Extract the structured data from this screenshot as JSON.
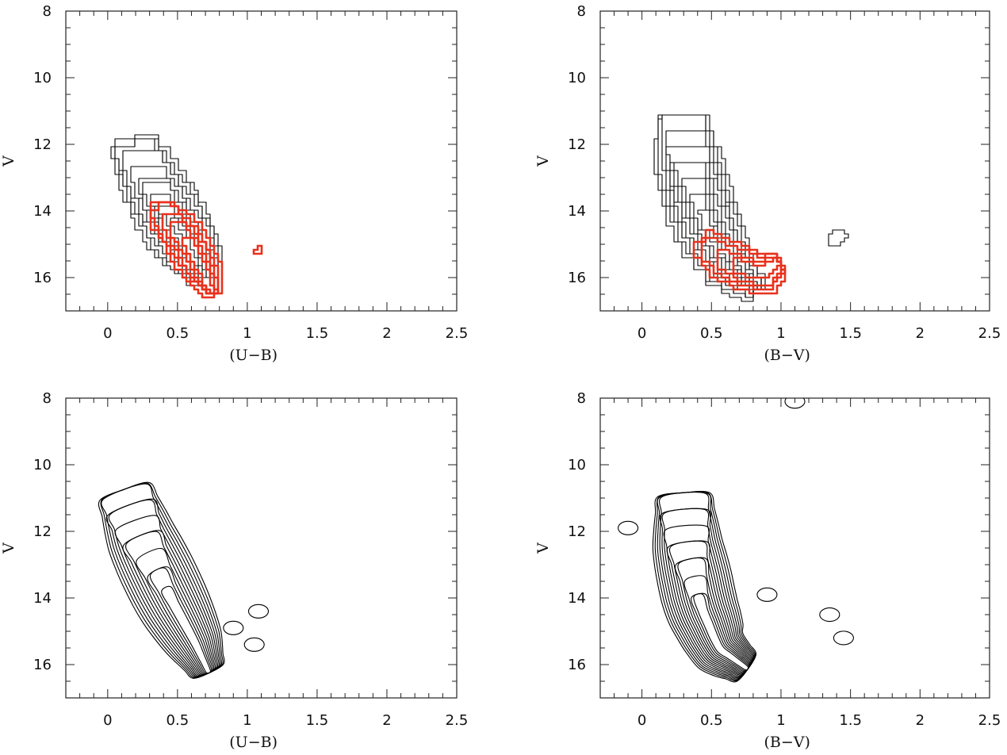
{
  "chart_data": [
    {
      "type": "contour",
      "panel": "top-left",
      "xlabel": "(U−B)",
      "ylabel": "V",
      "xlim": [
        -0.3,
        2.5
      ],
      "ylim": [
        17,
        8
      ],
      "xticks": [
        "0",
        "0.5",
        "1",
        "1.5",
        "2",
        "2.5"
      ],
      "yticks": [
        "8",
        "10",
        "12",
        "14",
        "16"
      ],
      "series": [
        {
          "color": "#000000",
          "style": "binned-contours",
          "levels": 10,
          "ridge": [
            [
              0.2,
              12.1
            ],
            [
              0.35,
              13.4
            ],
            [
              0.5,
              14.5
            ],
            [
              0.62,
              15.4
            ],
            [
              0.68,
              16.0
            ]
          ]
        },
        {
          "color": "#e8311c",
          "style": "binned-contours",
          "levels": 5,
          "ridge": [
            [
              0.38,
              14.0
            ],
            [
              0.55,
              14.8
            ],
            [
              0.68,
              15.8
            ],
            [
              0.75,
              16.4
            ]
          ],
          "islands": [
            [
              1.08,
              15.2
            ]
          ]
        }
      ]
    },
    {
      "type": "contour",
      "panel": "top-right",
      "xlabel": "(B−V)",
      "ylabel": "V",
      "xlim": [
        -0.3,
        2.5
      ],
      "ylim": [
        17,
        8
      ],
      "xticks": [
        "0",
        "0.5",
        "1",
        "1.5",
        "2",
        "2.5"
      ],
      "yticks": [
        "8",
        "10",
        "12",
        "14",
        "16"
      ],
      "series": [
        {
          "color": "#000000",
          "style": "binned-contours",
          "levels": 10,
          "ridge": [
            [
              0.3,
              11.2
            ],
            [
              0.35,
              12.8
            ],
            [
              0.45,
              14.3
            ],
            [
              0.6,
              15.6
            ],
            [
              0.8,
              16.3
            ]
          ],
          "islands": [
            [
              1.4,
              14.8
            ]
          ]
        },
        {
          "color": "#e8311c",
          "style": "binned-contours",
          "levels": 4,
          "ridge": [
            [
              0.45,
              15.0
            ],
            [
              0.65,
              15.6
            ],
            [
              0.85,
              15.9
            ],
            [
              1.0,
              15.5
            ]
          ]
        }
      ]
    },
    {
      "type": "contour",
      "panel": "bottom-left",
      "xlabel": "(U−B)",
      "ylabel": "V",
      "xlim": [
        -0.3,
        2.5
      ],
      "ylim": [
        17,
        8
      ],
      "xticks": [
        "0",
        "0.5",
        "1",
        "1.5",
        "2",
        "2.5"
      ],
      "yticks": [
        "8",
        "10",
        "12",
        "14",
        "16"
      ],
      "series": [
        {
          "color": "#000000",
          "style": "smooth-contours",
          "levels": 12,
          "ridge": [
            [
              0.12,
              10.8
            ],
            [
              0.25,
              12.3
            ],
            [
              0.45,
              14.0
            ],
            [
              0.62,
              15.3
            ],
            [
              0.72,
              16.2
            ]
          ],
          "islands": [
            [
              0.9,
              14.9
            ],
            [
              1.05,
              15.4
            ],
            [
              1.08,
              14.4
            ]
          ]
        }
      ]
    },
    {
      "type": "contour",
      "panel": "bottom-right",
      "xlabel": "(B−V)",
      "ylabel": "V",
      "xlim": [
        -0.3,
        2.5
      ],
      "ylim": [
        17,
        8
      ],
      "xticks": [
        "0",
        "0.5",
        "1",
        "1.5",
        "2",
        "2.5"
      ],
      "yticks": [
        "8",
        "10",
        "12",
        "14",
        "16"
      ],
      "series": [
        {
          "color": "#000000",
          "style": "smooth-contours",
          "levels": 14,
          "ridge": [
            [
              0.3,
              10.9
            ],
            [
              0.33,
              12.5
            ],
            [
              0.42,
              14.2
            ],
            [
              0.55,
              15.5
            ],
            [
              0.75,
              16.1
            ]
          ],
          "islands": [
            [
              1.35,
              14.5
            ],
            [
              1.45,
              15.2
            ],
            [
              0.9,
              13.9
            ],
            [
              -0.1,
              11.9
            ],
            [
              1.1,
              8.1
            ]
          ]
        }
      ]
    }
  ]
}
